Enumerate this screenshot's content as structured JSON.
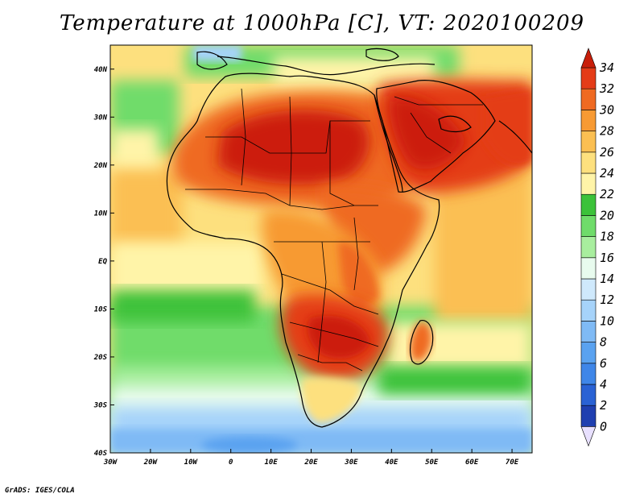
{
  "title": "Temperature at 1000hPa [C], VT: 2020100209",
  "credit": "GrADS: IGES/COLA",
  "map": {
    "region": "Africa and Arabian Peninsula",
    "variable": "Temperature at 1000hPa",
    "units": "C",
    "valid_time": "2020100209",
    "lon_range": [
      -30,
      75
    ],
    "lat_range": [
      -40,
      45
    ],
    "lon_ticks": [
      {
        "value": -30,
        "label": "30W"
      },
      {
        "value": -20,
        "label": "20W"
      },
      {
        "value": -10,
        "label": "10W"
      },
      {
        "value": 0,
        "label": "0"
      },
      {
        "value": 10,
        "label": "10E"
      },
      {
        "value": 20,
        "label": "20E"
      },
      {
        "value": 30,
        "label": "30E"
      },
      {
        "value": 40,
        "label": "40E"
      },
      {
        "value": 50,
        "label": "50E"
      },
      {
        "value": 60,
        "label": "60E"
      },
      {
        "value": 70,
        "label": "70E"
      }
    ],
    "lat_ticks": [
      {
        "value": 40,
        "label": "40N"
      },
      {
        "value": 30,
        "label": "30N"
      },
      {
        "value": 20,
        "label": "20N"
      },
      {
        "value": 10,
        "label": "10N"
      },
      {
        "value": 0,
        "label": "EQ"
      },
      {
        "value": -10,
        "label": "10S"
      },
      {
        "value": -20,
        "label": "20S"
      },
      {
        "value": -30,
        "label": "30S"
      },
      {
        "value": -40,
        "label": "40S"
      }
    ]
  },
  "colorbar": {
    "levels": [
      "0",
      "2",
      "4",
      "6",
      "8",
      "10",
      "12",
      "14",
      "16",
      "18",
      "20",
      "22",
      "24",
      "26",
      "28",
      "30",
      "32",
      "34"
    ],
    "colors": [
      "#1a1a7a",
      "#1f3fb0",
      "#2a62d4",
      "#3f86e8",
      "#5aa2f0",
      "#7fbaf5",
      "#a6d3fa",
      "#cfe9fc",
      "#e8fbee",
      "#a8ee9e",
      "#6fdc6a",
      "#3cc23a",
      "#fff4a8",
      "#fde07e",
      "#fbbf52",
      "#f79a33",
      "#ef6a22",
      "#e43c18",
      "#cc1d0c"
    ],
    "under_color": "#e8e0ff",
    "over_color": "#c81e0a"
  }
}
